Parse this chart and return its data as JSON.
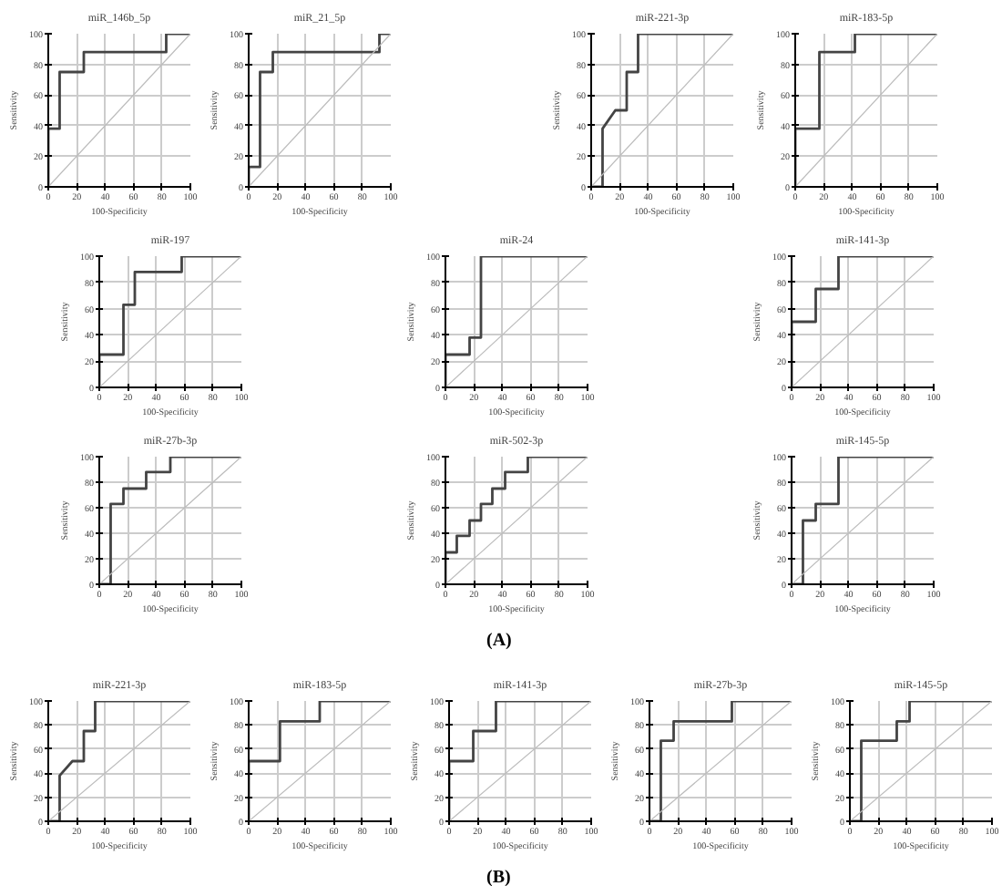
{
  "chart_data": [
    {
      "type": "line",
      "title": "miR_146b_5p",
      "xlabel": "100-Specificity",
      "ylabel": "Sensitivity",
      "xlim": [
        0,
        100
      ],
      "ylim": [
        0,
        100
      ],
      "xticks": [
        0,
        20,
        40,
        60,
        80,
        100
      ],
      "yticks": [
        0,
        20,
        40,
        60,
        80,
        100
      ],
      "grid": true,
      "series": [
        {
          "color": "#444444",
          "x": [
            0,
            0,
            8,
            8,
            25,
            25,
            83,
            83,
            100
          ],
          "values": [
            0,
            38,
            38,
            75,
            75,
            88,
            88,
            100,
            100
          ]
        },
        {
          "color": "#bbbbbb",
          "x": [
            0,
            100
          ],
          "values": [
            0,
            100
          ]
        }
      ]
    },
    {
      "type": "line",
      "title": "miR_21_5p",
      "xlabel": "100-Specificity",
      "ylabel": "Sensitivity",
      "xlim": [
        0,
        100
      ],
      "ylim": [
        0,
        100
      ],
      "xticks": [
        0,
        20,
        40,
        60,
        80,
        100
      ],
      "yticks": [
        0,
        20,
        40,
        60,
        80,
        100
      ],
      "grid": true,
      "series": [
        {
          "color": "#444444",
          "x": [
            0,
            0,
            8,
            8,
            17,
            17,
            92,
            92,
            100
          ],
          "values": [
            0,
            13,
            13,
            75,
            75,
            88,
            88,
            100,
            100
          ]
        },
        {
          "color": "#bbbbbb",
          "x": [
            0,
            100
          ],
          "values": [
            0,
            100
          ]
        }
      ]
    },
    {
      "type": "line",
      "title": "miR-221-3p",
      "xlabel": "100-Specificity",
      "ylabel": "Sensitivity",
      "xlim": [
        0,
        100
      ],
      "ylim": [
        0,
        100
      ],
      "xticks": [
        0,
        20,
        40,
        60,
        80,
        100
      ],
      "yticks": [
        0,
        20,
        40,
        60,
        80,
        100
      ],
      "grid": true,
      "series": [
        {
          "color": "#444444",
          "x": [
            0,
            8,
            8,
            17,
            25,
            25,
            33,
            33,
            100
          ],
          "values": [
            0,
            0,
            38,
            50,
            50,
            75,
            75,
            100,
            100
          ]
        },
        {
          "color": "#bbbbbb",
          "x": [
            0,
            100
          ],
          "values": [
            0,
            100
          ]
        }
      ]
    },
    {
      "type": "line",
      "title": "miR-183-5p",
      "xlabel": "100-Specificity",
      "ylabel": "Sensitivity",
      "xlim": [
        0,
        100
      ],
      "ylim": [
        0,
        100
      ],
      "xticks": [
        0,
        20,
        40,
        60,
        80,
        100
      ],
      "yticks": [
        0,
        20,
        40,
        60,
        80,
        100
      ],
      "grid": true,
      "series": [
        {
          "color": "#444444",
          "x": [
            0,
            0,
            17,
            17,
            42,
            42,
            100
          ],
          "values": [
            0,
            38,
            38,
            88,
            88,
            100,
            100
          ]
        },
        {
          "color": "#bbbbbb",
          "x": [
            0,
            100
          ],
          "values": [
            0,
            100
          ]
        }
      ]
    },
    {
      "type": "line",
      "title": "miR-197",
      "xlabel": "100-Specificity",
      "ylabel": "Sensitivity",
      "xlim": [
        0,
        100
      ],
      "ylim": [
        0,
        100
      ],
      "xticks": [
        0,
        20,
        40,
        60,
        80,
        100
      ],
      "yticks": [
        0,
        20,
        40,
        60,
        80,
        100
      ],
      "grid": true,
      "series": [
        {
          "color": "#444444",
          "x": [
            0,
            0,
            17,
            17,
            25,
            25,
            58,
            58,
            100
          ],
          "values": [
            0,
            25,
            25,
            63,
            63,
            88,
            88,
            100,
            100
          ]
        },
        {
          "color": "#bbbbbb",
          "x": [
            0,
            100
          ],
          "values": [
            0,
            100
          ]
        }
      ]
    },
    {
      "type": "line",
      "title": "miR-24",
      "xlabel": "100-Specificity",
      "ylabel": "Sensitivity",
      "xlim": [
        0,
        100
      ],
      "ylim": [
        0,
        100
      ],
      "xticks": [
        0,
        20,
        40,
        60,
        80,
        100
      ],
      "yticks": [
        0,
        20,
        40,
        60,
        80,
        100
      ],
      "grid": true,
      "series": [
        {
          "color": "#444444",
          "x": [
            0,
            0,
            17,
            17,
            25,
            25,
            100
          ],
          "values": [
            0,
            25,
            25,
            38,
            38,
            100,
            100
          ]
        },
        {
          "color": "#bbbbbb",
          "x": [
            0,
            100
          ],
          "values": [
            0,
            100
          ]
        }
      ]
    },
    {
      "type": "line",
      "title": "miR-141-3p",
      "xlabel": "100-Specificity",
      "ylabel": "Sensitivity",
      "xlim": [
        0,
        100
      ],
      "ylim": [
        0,
        100
      ],
      "xticks": [
        0,
        20,
        40,
        60,
        80,
        100
      ],
      "yticks": [
        0,
        20,
        40,
        60,
        80,
        100
      ],
      "grid": true,
      "series": [
        {
          "color": "#444444",
          "x": [
            0,
            0,
            17,
            17,
            33,
            33,
            100
          ],
          "values": [
            0,
            50,
            50,
            75,
            75,
            100,
            100
          ]
        },
        {
          "color": "#bbbbbb",
          "x": [
            0,
            100
          ],
          "values": [
            0,
            100
          ]
        }
      ]
    },
    {
      "type": "line",
      "title": "miR-27b-3p",
      "xlabel": "100-Specificity",
      "ylabel": "Sensitivity",
      "xlim": [
        0,
        100
      ],
      "ylim": [
        0,
        100
      ],
      "xticks": [
        0,
        20,
        40,
        60,
        80,
        100
      ],
      "yticks": [
        0,
        20,
        40,
        60,
        80,
        100
      ],
      "grid": true,
      "series": [
        {
          "color": "#444444",
          "x": [
            0,
            8,
            8,
            17,
            17,
            33,
            33,
            50,
            50,
            100
          ],
          "values": [
            0,
            0,
            63,
            63,
            75,
            75,
            88,
            88,
            100,
            100
          ]
        },
        {
          "color": "#bbbbbb",
          "x": [
            0,
            100
          ],
          "values": [
            0,
            100
          ]
        }
      ]
    },
    {
      "type": "line",
      "title": "miR-502-3p",
      "xlabel": "100-Specificity",
      "ylabel": "Sensitivity",
      "xlim": [
        0,
        100
      ],
      "ylim": [
        0,
        100
      ],
      "xticks": [
        0,
        20,
        40,
        60,
        80,
        100
      ],
      "yticks": [
        0,
        20,
        40,
        60,
        80,
        100
      ],
      "grid": true,
      "annotations": [
        "(A)"
      ],
      "series": [
        {
          "color": "#444444",
          "x": [
            0,
            0,
            8,
            8,
            17,
            17,
            25,
            25,
            33,
            33,
            42,
            42,
            58,
            58,
            100
          ],
          "values": [
            0,
            25,
            25,
            38,
            38,
            50,
            50,
            63,
            63,
            75,
            75,
            88,
            88,
            100,
            100
          ]
        },
        {
          "color": "#bbbbbb",
          "x": [
            0,
            100
          ],
          "values": [
            0,
            100
          ]
        }
      ]
    },
    {
      "type": "line",
      "title": "miR-145-5p",
      "xlabel": "100-Specificity",
      "ylabel": "Sensitivity",
      "xlim": [
        0,
        100
      ],
      "ylim": [
        0,
        100
      ],
      "xticks": [
        0,
        20,
        40,
        60,
        80,
        100
      ],
      "yticks": [
        0,
        20,
        40,
        60,
        80,
        100
      ],
      "grid": true,
      "series": [
        {
          "color": "#444444",
          "x": [
            0,
            8,
            8,
            17,
            17,
            33,
            33,
            100
          ],
          "values": [
            0,
            0,
            50,
            50,
            63,
            63,
            100,
            100
          ]
        },
        {
          "color": "#bbbbbb",
          "x": [
            0,
            100
          ],
          "values": [
            0,
            100
          ]
        }
      ]
    },
    {
      "type": "line",
      "title": "miR-221-3p",
      "xlabel": "100-Specificity",
      "ylabel": "Sensitivity",
      "xlim": [
        0,
        100
      ],
      "ylim": [
        0,
        100
      ],
      "xticks": [
        0,
        20,
        40,
        60,
        80,
        100
      ],
      "yticks": [
        0,
        20,
        40,
        60,
        80,
        100
      ],
      "grid": true,
      "series": [
        {
          "color": "#444444",
          "x": [
            0,
            8,
            8,
            17,
            25,
            25,
            33,
            33,
            100
          ],
          "values": [
            0,
            0,
            38,
            50,
            50,
            75,
            75,
            100,
            100
          ]
        },
        {
          "color": "#bbbbbb",
          "x": [
            0,
            100
          ],
          "values": [
            0,
            100
          ]
        }
      ]
    },
    {
      "type": "line",
      "title": "miR-183-5p",
      "xlabel": "100-Specificity",
      "ylabel": "Sensitivity",
      "xlim": [
        0,
        100
      ],
      "ylim": [
        0,
        100
      ],
      "xticks": [
        0,
        20,
        40,
        60,
        80,
        100
      ],
      "yticks": [
        0,
        20,
        40,
        60,
        80,
        100
      ],
      "grid": true,
      "series": [
        {
          "color": "#444444",
          "x": [
            0,
            0,
            22,
            22,
            50,
            50,
            100
          ],
          "values": [
            0,
            50,
            50,
            83,
            83,
            100,
            100
          ]
        },
        {
          "color": "#bbbbbb",
          "x": [
            0,
            100
          ],
          "values": [
            0,
            100
          ]
        }
      ]
    },
    {
      "type": "line",
      "title": "miR-141-3p",
      "xlabel": "100-Specificity",
      "ylabel": "Sensitivity",
      "xlim": [
        0,
        100
      ],
      "ylim": [
        0,
        100
      ],
      "xticks": [
        0,
        20,
        40,
        60,
        80,
        100
      ],
      "yticks": [
        0,
        20,
        40,
        60,
        80,
        100
      ],
      "grid": true,
      "annotations": [
        "(B)"
      ],
      "series": [
        {
          "color": "#444444",
          "x": [
            0,
            0,
            17,
            17,
            33,
            33,
            100
          ],
          "values": [
            0,
            50,
            50,
            75,
            75,
            100,
            100
          ]
        },
        {
          "color": "#bbbbbb",
          "x": [
            0,
            100
          ],
          "values": [
            0,
            100
          ]
        }
      ]
    },
    {
      "type": "line",
      "title": "miR-27b-3p",
      "xlabel": "100-Specificity",
      "ylabel": "Sensitivity",
      "xlim": [
        0,
        100
      ],
      "ylim": [
        0,
        100
      ],
      "xticks": [
        0,
        20,
        40,
        60,
        80,
        100
      ],
      "yticks": [
        0,
        20,
        40,
        60,
        80,
        100
      ],
      "grid": true,
      "series": [
        {
          "color": "#444444",
          "x": [
            0,
            8,
            8,
            17,
            17,
            58,
            58,
            100
          ],
          "values": [
            0,
            0,
            67,
            67,
            83,
            83,
            100,
            100
          ]
        },
        {
          "color": "#bbbbbb",
          "x": [
            0,
            100
          ],
          "values": [
            0,
            100
          ]
        }
      ]
    },
    {
      "type": "line",
      "title": "miR-145-5p",
      "xlabel": "100-Specificity",
      "ylabel": "Sensitivity",
      "xlim": [
        0,
        100
      ],
      "ylim": [
        0,
        100
      ],
      "xticks": [
        0,
        20,
        40,
        60,
        80,
        100
      ],
      "yticks": [
        0,
        20,
        40,
        60,
        80,
        100
      ],
      "grid": true,
      "series": [
        {
          "color": "#444444",
          "x": [
            0,
            8,
            8,
            33,
            33,
            42,
            42,
            100
          ],
          "values": [
            0,
            0,
            67,
            67,
            83,
            83,
            100,
            100
          ]
        },
        {
          "color": "#bbbbbb",
          "x": [
            0,
            100
          ],
          "values": [
            0,
            100
          ]
        }
      ]
    }
  ]
}
